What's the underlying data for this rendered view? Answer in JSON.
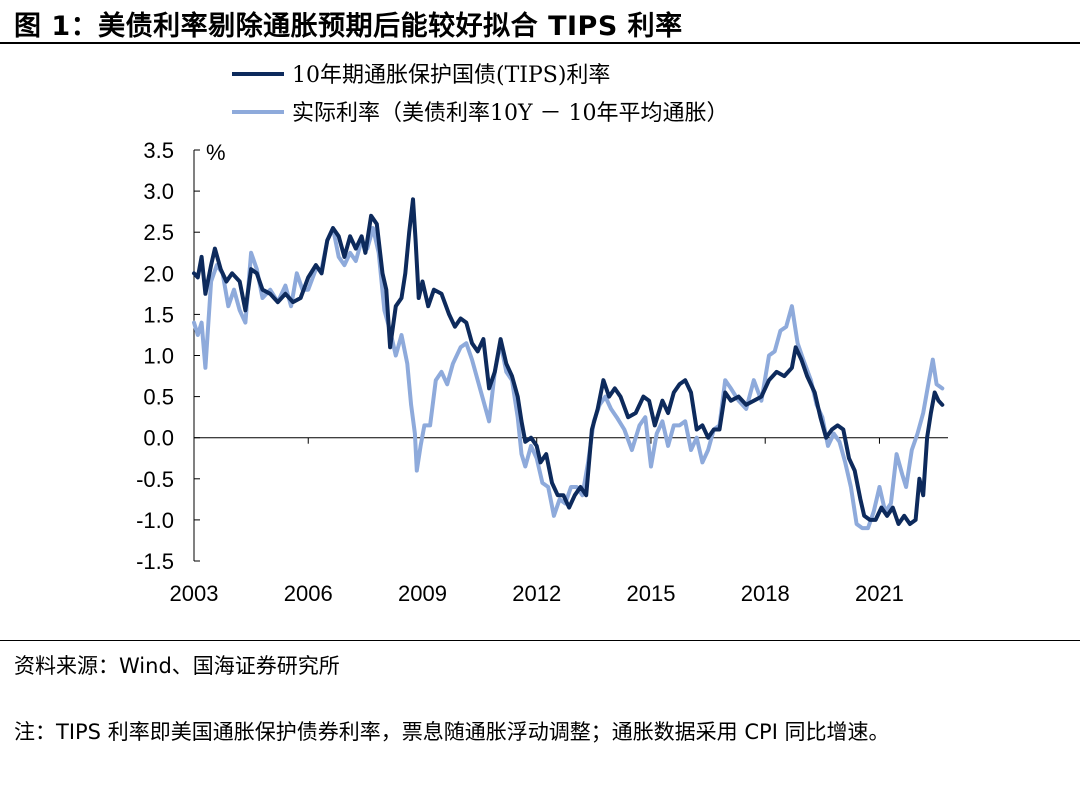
{
  "figure": {
    "title": "图 1：美债利率剔除通胀预期后能较好拟合 TIPS 利率",
    "source": "资料来源：Wind、国海证券研究所",
    "note": "注：TIPS 利率即美国通胀保护债券利率，票息随通胀浮动调整；通胀数据采用 CPI 同比增速。"
  },
  "chart_data": {
    "type": "line",
    "title": "",
    "xlabel": "",
    "ylabel": "%",
    "xlim": [
      2003.0,
      2022.8
    ],
    "ylim": [
      -1.5,
      3.5
    ],
    "yticks": [
      3.5,
      3.0,
      2.5,
      2.0,
      1.5,
      1.0,
      0.5,
      0.0,
      -0.5,
      -1.0,
      -1.5
    ],
    "ytick_labels": [
      "3.5",
      "3.0",
      "2.5",
      "2.0",
      "1.5",
      "1.0",
      "0.5",
      "0.0",
      "-0.5",
      "-1.0",
      "-1.5"
    ],
    "xticks": [
      2003,
      2006,
      2009,
      2012,
      2015,
      2018,
      2021
    ],
    "xtick_labels": [
      "2003",
      "2006",
      "2009",
      "2012",
      "2015",
      "2018",
      "2021"
    ],
    "legend_position": "top",
    "series": [
      {
        "name": "10年期通胀保护国债(TIPS)利率",
        "color": "#0d2a5c",
        "points": [
          [
            2003.0,
            2.0
          ],
          [
            2003.1,
            1.95
          ],
          [
            2003.2,
            2.2
          ],
          [
            2003.3,
            1.75
          ],
          [
            2003.45,
            2.1
          ],
          [
            2003.55,
            2.3
          ],
          [
            2003.7,
            2.05
          ],
          [
            2003.85,
            1.9
          ],
          [
            2004.0,
            2.0
          ],
          [
            2004.2,
            1.9
          ],
          [
            2004.35,
            1.55
          ],
          [
            2004.5,
            2.05
          ],
          [
            2004.65,
            2.0
          ],
          [
            2004.8,
            1.8
          ],
          [
            2005.0,
            1.75
          ],
          [
            2005.2,
            1.65
          ],
          [
            2005.4,
            1.75
          ],
          [
            2005.6,
            1.65
          ],
          [
            2005.8,
            1.7
          ],
          [
            2006.0,
            1.95
          ],
          [
            2006.2,
            2.1
          ],
          [
            2006.35,
            2.0
          ],
          [
            2006.5,
            2.4
          ],
          [
            2006.65,
            2.55
          ],
          [
            2006.8,
            2.45
          ],
          [
            2006.95,
            2.2
          ],
          [
            2007.1,
            2.45
          ],
          [
            2007.25,
            2.3
          ],
          [
            2007.4,
            2.45
          ],
          [
            2007.5,
            2.25
          ],
          [
            2007.65,
            2.7
          ],
          [
            2007.8,
            2.6
          ],
          [
            2007.95,
            2.0
          ],
          [
            2008.05,
            1.8
          ],
          [
            2008.15,
            1.1
          ],
          [
            2008.3,
            1.6
          ],
          [
            2008.45,
            1.7
          ],
          [
            2008.55,
            2.0
          ],
          [
            2008.65,
            2.5
          ],
          [
            2008.75,
            2.9
          ],
          [
            2008.82,
            2.4
          ],
          [
            2008.9,
            1.7
          ],
          [
            2009.0,
            1.9
          ],
          [
            2009.15,
            1.6
          ],
          [
            2009.3,
            1.8
          ],
          [
            2009.5,
            1.75
          ],
          [
            2009.7,
            1.5
          ],
          [
            2009.85,
            1.35
          ],
          [
            2010.0,
            1.45
          ],
          [
            2010.15,
            1.4
          ],
          [
            2010.3,
            1.15
          ],
          [
            2010.45,
            1.05
          ],
          [
            2010.6,
            1.2
          ],
          [
            2010.75,
            0.6
          ],
          [
            2010.9,
            0.8
          ],
          [
            2011.05,
            1.2
          ],
          [
            2011.2,
            0.9
          ],
          [
            2011.35,
            0.75
          ],
          [
            2011.5,
            0.5
          ],
          [
            2011.6,
            0.2
          ],
          [
            2011.7,
            -0.05
          ],
          [
            2011.85,
            0.0
          ],
          [
            2012.0,
            -0.1
          ],
          [
            2012.1,
            -0.3
          ],
          [
            2012.25,
            -0.2
          ],
          [
            2012.4,
            -0.55
          ],
          [
            2012.55,
            -0.7
          ],
          [
            2012.7,
            -0.7
          ],
          [
            2012.85,
            -0.85
          ],
          [
            2013.0,
            -0.7
          ],
          [
            2013.15,
            -0.6
          ],
          [
            2013.3,
            -0.7
          ],
          [
            2013.45,
            0.1
          ],
          [
            2013.6,
            0.35
          ],
          [
            2013.75,
            0.7
          ],
          [
            2013.9,
            0.5
          ],
          [
            2014.05,
            0.6
          ],
          [
            2014.2,
            0.5
          ],
          [
            2014.4,
            0.25
          ],
          [
            2014.6,
            0.3
          ],
          [
            2014.8,
            0.5
          ],
          [
            2014.95,
            0.45
          ],
          [
            2015.1,
            0.15
          ],
          [
            2015.3,
            0.45
          ],
          [
            2015.45,
            0.3
          ],
          [
            2015.6,
            0.55
          ],
          [
            2015.75,
            0.65
          ],
          [
            2015.9,
            0.7
          ],
          [
            2016.05,
            0.55
          ],
          [
            2016.2,
            0.1
          ],
          [
            2016.35,
            0.15
          ],
          [
            2016.5,
            0.0
          ],
          [
            2016.65,
            0.1
          ],
          [
            2016.8,
            0.1
          ],
          [
            2016.95,
            0.55
          ],
          [
            2017.1,
            0.45
          ],
          [
            2017.3,
            0.5
          ],
          [
            2017.5,
            0.4
          ],
          [
            2017.7,
            0.45
          ],
          [
            2017.9,
            0.5
          ],
          [
            2018.1,
            0.7
          ],
          [
            2018.3,
            0.8
          ],
          [
            2018.5,
            0.75
          ],
          [
            2018.7,
            0.85
          ],
          [
            2018.8,
            1.1
          ],
          [
            2018.95,
            0.95
          ],
          [
            2019.1,
            0.75
          ],
          [
            2019.3,
            0.55
          ],
          [
            2019.45,
            0.25
          ],
          [
            2019.6,
            0.0
          ],
          [
            2019.75,
            0.1
          ],
          [
            2019.9,
            0.15
          ],
          [
            2020.05,
            0.1
          ],
          [
            2020.2,
            -0.25
          ],
          [
            2020.35,
            -0.4
          ],
          [
            2020.5,
            -0.75
          ],
          [
            2020.6,
            -0.95
          ],
          [
            2020.75,
            -1.0
          ],
          [
            2020.9,
            -1.0
          ],
          [
            2021.05,
            -0.85
          ],
          [
            2021.2,
            -0.95
          ],
          [
            2021.35,
            -0.85
          ],
          [
            2021.5,
            -1.05
          ],
          [
            2021.65,
            -0.95
          ],
          [
            2021.8,
            -1.05
          ],
          [
            2021.95,
            -1.0
          ],
          [
            2022.05,
            -0.5
          ],
          [
            2022.15,
            -0.7
          ],
          [
            2022.25,
            0.0
          ],
          [
            2022.35,
            0.3
          ],
          [
            2022.45,
            0.55
          ],
          [
            2022.55,
            0.45
          ],
          [
            2022.65,
            0.4
          ]
        ]
      },
      {
        "name": "实际利率（美债利率10Y － 10年平均通胀）",
        "color": "#8eaadb",
        "points": [
          [
            2003.0,
            1.4
          ],
          [
            2003.1,
            1.25
          ],
          [
            2003.2,
            1.4
          ],
          [
            2003.3,
            0.85
          ],
          [
            2003.45,
            1.9
          ],
          [
            2003.6,
            2.1
          ],
          [
            2003.75,
            2.0
          ],
          [
            2003.9,
            1.6
          ],
          [
            2004.05,
            1.8
          ],
          [
            2004.2,
            1.55
          ],
          [
            2004.35,
            1.4
          ],
          [
            2004.5,
            2.25
          ],
          [
            2004.65,
            2.05
          ],
          [
            2004.8,
            1.7
          ],
          [
            2005.0,
            1.8
          ],
          [
            2005.2,
            1.65
          ],
          [
            2005.4,
            1.85
          ],
          [
            2005.55,
            1.6
          ],
          [
            2005.7,
            2.0
          ],
          [
            2005.85,
            1.8
          ],
          [
            2006.0,
            1.8
          ],
          [
            2006.2,
            2.05
          ],
          [
            2006.35,
            2.05
          ],
          [
            2006.5,
            2.4
          ],
          [
            2006.65,
            2.55
          ],
          [
            2006.8,
            2.2
          ],
          [
            2006.95,
            2.1
          ],
          [
            2007.1,
            2.25
          ],
          [
            2007.25,
            2.15
          ],
          [
            2007.4,
            2.4
          ],
          [
            2007.55,
            2.3
          ],
          [
            2007.7,
            2.55
          ],
          [
            2007.85,
            2.25
          ],
          [
            2008.0,
            1.55
          ],
          [
            2008.15,
            1.3
          ],
          [
            2008.3,
            1.0
          ],
          [
            2008.45,
            1.25
          ],
          [
            2008.6,
            0.9
          ],
          [
            2008.7,
            0.4
          ],
          [
            2008.8,
            0.05
          ],
          [
            2008.85,
            -0.4
          ],
          [
            2008.95,
            -0.1
          ],
          [
            2009.05,
            0.15
          ],
          [
            2009.2,
            0.15
          ],
          [
            2009.35,
            0.7
          ],
          [
            2009.5,
            0.8
          ],
          [
            2009.65,
            0.65
          ],
          [
            2009.8,
            0.9
          ],
          [
            2010.0,
            1.1
          ],
          [
            2010.15,
            1.15
          ],
          [
            2010.3,
            0.95
          ],
          [
            2010.45,
            0.7
          ],
          [
            2010.6,
            0.45
          ],
          [
            2010.75,
            0.2
          ],
          [
            2010.9,
            0.8
          ],
          [
            2011.05,
            1.15
          ],
          [
            2011.2,
            0.8
          ],
          [
            2011.35,
            0.7
          ],
          [
            2011.5,
            0.25
          ],
          [
            2011.6,
            -0.2
          ],
          [
            2011.7,
            -0.35
          ],
          [
            2011.85,
            -0.1
          ],
          [
            2012.0,
            -0.25
          ],
          [
            2012.15,
            -0.55
          ],
          [
            2012.3,
            -0.6
          ],
          [
            2012.45,
            -0.95
          ],
          [
            2012.6,
            -0.75
          ],
          [
            2012.75,
            -0.8
          ],
          [
            2012.9,
            -0.6
          ],
          [
            2013.05,
            -0.6
          ],
          [
            2013.2,
            -0.7
          ],
          [
            2013.35,
            -0.3
          ],
          [
            2013.5,
            0.2
          ],
          [
            2013.65,
            0.4
          ],
          [
            2013.8,
            0.5
          ],
          [
            2013.95,
            0.35
          ],
          [
            2014.1,
            0.25
          ],
          [
            2014.3,
            0.1
          ],
          [
            2014.5,
            -0.15
          ],
          [
            2014.7,
            0.15
          ],
          [
            2014.85,
            0.25
          ],
          [
            2015.0,
            -0.35
          ],
          [
            2015.15,
            0.05
          ],
          [
            2015.3,
            0.2
          ],
          [
            2015.45,
            -0.1
          ],
          [
            2015.6,
            0.15
          ],
          [
            2015.75,
            0.15
          ],
          [
            2015.9,
            0.2
          ],
          [
            2016.05,
            -0.15
          ],
          [
            2016.2,
            0.0
          ],
          [
            2016.35,
            -0.3
          ],
          [
            2016.5,
            -0.15
          ],
          [
            2016.65,
            0.1
          ],
          [
            2016.8,
            0.15
          ],
          [
            2016.95,
            0.7
          ],
          [
            2017.1,
            0.6
          ],
          [
            2017.3,
            0.45
          ],
          [
            2017.5,
            0.35
          ],
          [
            2017.7,
            0.7
          ],
          [
            2017.9,
            0.45
          ],
          [
            2018.1,
            1.0
          ],
          [
            2018.25,
            1.05
          ],
          [
            2018.4,
            1.3
          ],
          [
            2018.55,
            1.35
          ],
          [
            2018.7,
            1.6
          ],
          [
            2018.85,
            1.15
          ],
          [
            2019.0,
            0.95
          ],
          [
            2019.2,
            0.7
          ],
          [
            2019.35,
            0.4
          ],
          [
            2019.5,
            0.25
          ],
          [
            2019.65,
            -0.1
          ],
          [
            2019.8,
            0.05
          ],
          [
            2019.95,
            -0.05
          ],
          [
            2020.1,
            -0.3
          ],
          [
            2020.25,
            -0.6
          ],
          [
            2020.4,
            -1.05
          ],
          [
            2020.55,
            -1.1
          ],
          [
            2020.7,
            -1.1
          ],
          [
            2020.85,
            -0.9
          ],
          [
            2021.0,
            -0.6
          ],
          [
            2021.15,
            -0.9
          ],
          [
            2021.3,
            -0.8
          ],
          [
            2021.45,
            -0.2
          ],
          [
            2021.6,
            -0.45
          ],
          [
            2021.7,
            -0.6
          ],
          [
            2021.85,
            -0.15
          ],
          [
            2022.0,
            0.05
          ],
          [
            2022.15,
            0.3
          ],
          [
            2022.3,
            0.7
          ],
          [
            2022.4,
            0.95
          ],
          [
            2022.5,
            0.65
          ],
          [
            2022.65,
            0.6
          ]
        ]
      }
    ]
  }
}
